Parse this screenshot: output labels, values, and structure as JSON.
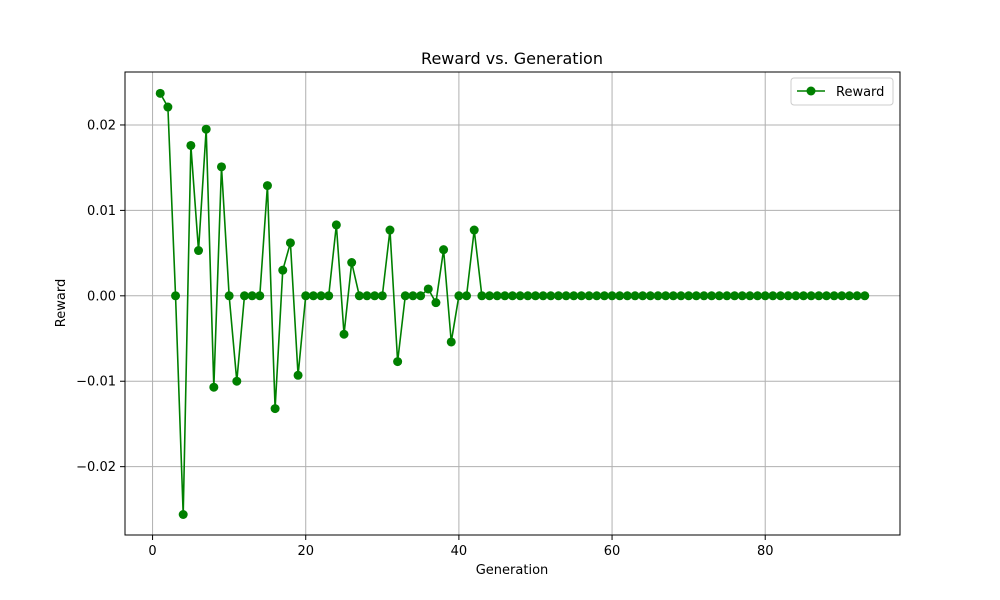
{
  "chart_data": {
    "type": "line",
    "title": "Reward vs. Generation",
    "xlabel": "Generation",
    "ylabel": "Reward",
    "xlim": [
      -3.6,
      97.6
    ],
    "ylim": [
      -0.028,
      0.0262
    ],
    "xticks": [
      0,
      20,
      40,
      60,
      80
    ],
    "yticks": [
      -0.02,
      -0.01,
      0.0,
      0.01,
      0.02
    ],
    "ytick_labels": [
      "−0.02",
      "−0.01",
      "0.00",
      "0.01",
      "0.02"
    ],
    "grid": true,
    "legend_position": "top-right",
    "colors": {
      "series": "#008000",
      "grid": "#b0b0b0",
      "axes": "#000000"
    },
    "series": [
      {
        "name": "Reward",
        "marker": "circle",
        "x": [
          1,
          2,
          3,
          4,
          5,
          6,
          7,
          8,
          9,
          10,
          11,
          12,
          13,
          14,
          15,
          16,
          17,
          18,
          19,
          20,
          21,
          22,
          23,
          24,
          25,
          26,
          27,
          28,
          29,
          30,
          31,
          32,
          33,
          34,
          35,
          36,
          37,
          38,
          39,
          40,
          41,
          42,
          43,
          44,
          45,
          46,
          47,
          48,
          49,
          50,
          51,
          52,
          53,
          54,
          55,
          56,
          57,
          58,
          59,
          60,
          61,
          62,
          63,
          64,
          65,
          66,
          67,
          68,
          69,
          70,
          71,
          72,
          73,
          74,
          75,
          76,
          77,
          78,
          79,
          80,
          81,
          82,
          83,
          84,
          85,
          86,
          87,
          88,
          89,
          90,
          91,
          92,
          93
        ],
        "values": [
          0.0237,
          0.0221,
          0.0,
          -0.0256,
          0.0176,
          0.0053,
          0.0195,
          -0.0107,
          0.0151,
          0.0,
          -0.01,
          0.0,
          0.0,
          0.0,
          0.0129,
          -0.0132,
          0.003,
          0.0062,
          -0.0093,
          0.0,
          0.0,
          0.0,
          0.0,
          0.0083,
          -0.0045,
          0.0039,
          0.0,
          0.0,
          0.0,
          0.0,
          0.0077,
          -0.0077,
          0.0,
          0.0,
          0.0,
          0.0008,
          -0.0008,
          0.0054,
          -0.0054,
          0.0,
          0.0,
          0.0077,
          0.0,
          0.0,
          0.0,
          0.0,
          0.0,
          0.0,
          0.0,
          0.0,
          0.0,
          0.0,
          0.0,
          0.0,
          0.0,
          0.0,
          0.0,
          0.0,
          0.0,
          0.0,
          0.0,
          0.0,
          0.0,
          0.0,
          0.0,
          0.0,
          0.0,
          0.0,
          0.0,
          0.0,
          0.0,
          0.0,
          0.0,
          0.0,
          0.0,
          0.0,
          0.0,
          0.0,
          0.0,
          0.0,
          0.0,
          0.0,
          0.0,
          0.0,
          0.0,
          0.0,
          0.0,
          0.0,
          0.0,
          0.0,
          0.0,
          0.0,
          0.0
        ]
      }
    ]
  }
}
